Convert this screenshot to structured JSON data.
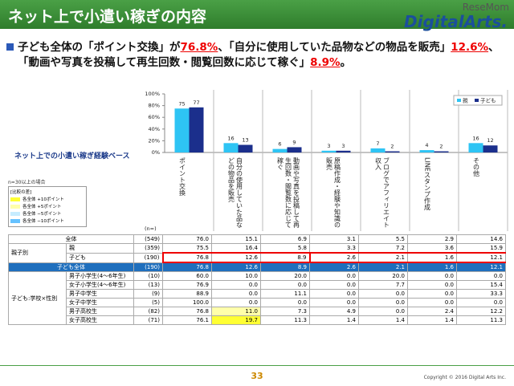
{
  "header": {
    "title": "ネット上で小遣い稼ぎの内容",
    "watermark": "ReseMom",
    "logo": "DigitalArts."
  },
  "subtitle": [
    "子ども全体の「ポイント交換」が",
    "76.8%",
    "、「自分に使用していた品物などの物品を販売」",
    "12.6%",
    "、「動画や写真を投稿して再生回数・閲覧回数に応じて稼ぐ」",
    "8.9%",
    "。"
  ],
  "chart_data": {
    "type": "bar",
    "categories": [
      "ポイント交換",
      "自分の使用していた品などの物品を販売",
      "動画や写真を投稿して再生回数・閲覧数に応じて稼ぐ",
      "原稿作成・経験や知識の販売",
      "ブログでアフィリエイト収入",
      "LINEスタンプ作成",
      "その他"
    ],
    "series": [
      {
        "name": "親",
        "color": "#2ec4f4",
        "values": [
          75,
          16,
          6,
          3,
          7,
          4,
          16
        ]
      },
      {
        "name": "子ども",
        "color": "#1b2f8c",
        "values": [
          77,
          13,
          9,
          3,
          2,
          2,
          12
        ]
      }
    ],
    "ylim": [
      0,
      100
    ],
    "yticks": [
      {
        "value": 0,
        "label": "0%"
      },
      {
        "value": 20,
        "label": "20%"
      },
      {
        "value": 40,
        "label": "40%"
      },
      {
        "value": 60,
        "label": "60%"
      },
      {
        "value": 80,
        "label": "80%"
      },
      {
        "value": 100,
        "label": "100%"
      }
    ],
    "legend": "top-right"
  },
  "side": {
    "base": "ネット上での小遣い稼ぎ経験ベース",
    "note": "n=30以上の場合",
    "key_title": "[比較の差]",
    "key": [
      {
        "label": "各全体 +10ポイント",
        "color": "#ffff33"
      },
      {
        "label": "各全体 +5ポイント",
        "color": "#ffffaa"
      },
      {
        "label": "各全体 −5ポイント",
        "color": "#c6ecff"
      },
      {
        "label": "各全体 −10ポイント",
        "color": "#66c2ff"
      }
    ]
  },
  "table": {
    "n_label": "(n=)",
    "sections": [
      {
        "label": "全体",
        "n": "(549)",
        "values": [
          "76.0",
          "15.1",
          "6.9",
          "3.1",
          "5.5",
          "2.9",
          "14.6"
        ]
      },
      {
        "group": "親子別",
        "rows": [
          {
            "label": "親",
            "n": "(359)",
            "values": [
              "75.5",
              "16.4",
              "5.8",
              "3.3",
              "7.2",
              "3.6",
              "15.9"
            ]
          },
          {
            "label": "子ども",
            "n": "(190)",
            "values": [
              "76.8",
              "12.6",
              "8.9",
              "2.6",
              "2.1",
              "1.6",
              "12.1"
            ]
          }
        ]
      },
      {
        "label": "子ども全体",
        "n": "(190)",
        "values": [
          "76.8",
          "12.6",
          "8.9",
          "2.6",
          "2.1",
          "1.6",
          "12.1"
        ]
      },
      {
        "group": "子ども:学校×性別",
        "rows": [
          {
            "label": "男子小学生(4〜6年生)",
            "n": "(10)",
            "values": [
              "60.0",
              "10.0",
              "20.0",
              "0.0",
              "20.0",
              "0.0",
              "0.0"
            ]
          },
          {
            "label": "女子小学生(4〜6年生)",
            "n": "(13)",
            "values": [
              "76.9",
              "0.0",
              "0.0",
              "0.0",
              "7.7",
              "0.0",
              "15.4"
            ]
          },
          {
            "label": "男子中学生",
            "n": "(9)",
            "values": [
              "88.9",
              "0.0",
              "11.1",
              "0.0",
              "0.0",
              "0.0",
              "33.3"
            ]
          },
          {
            "label": "女子中学生",
            "n": "(5)",
            "values": [
              "100.0",
              "0.0",
              "0.0",
              "0.0",
              "0.0",
              "0.0",
              "0.0"
            ]
          },
          {
            "label": "男子高校生",
            "n": "(82)",
            "values": [
              "76.8",
              "11.0",
              "7.3",
              "4.9",
              "0.0",
              "2.4",
              "12.2"
            ]
          },
          {
            "label": "女子高校生",
            "n": "(71)",
            "values": [
              "76.1",
              "19.7",
              "11.3",
              "1.4",
              "1.4",
              "1.4",
              "11.3"
            ]
          }
        ]
      }
    ]
  },
  "footer": {
    "page": "33",
    "copyright": "Copyright © 2016 Digital Arts Inc."
  }
}
